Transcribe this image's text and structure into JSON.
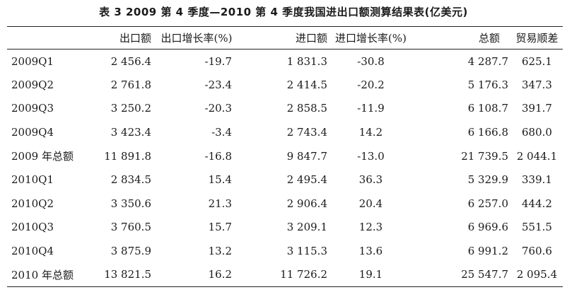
{
  "title": "表 3  2009 第 4 季度—2010 第 4 季度我国进出口额测算结果表(亿美元)",
  "headers": [
    "",
    "出口额",
    "出口增长率(%)",
    "进口额",
    "进口增长率(%)",
    "总额",
    "贸易顺差"
  ],
  "rows": [
    [
      "2009Q1",
      "2 456.4",
      "-19.7",
      "1 831.3",
      "-30.8",
      "4 287.7",
      "625.1"
    ],
    [
      "2009Q2",
      "2 761.8",
      "-23.4",
      "2 414.5",
      "-20.2",
      "5 176.3",
      "347.3"
    ],
    [
      "2009Q3",
      "3 250.2",
      "-20.3",
      "2 858.5",
      "-11.9",
      "6 108.7",
      "391.7"
    ],
    [
      "2009Q4",
      "3 423.4",
      "-3.4",
      "2 743.4",
      "14.2",
      "6 166.8",
      "680.0"
    ],
    [
      "2009 年总额",
      "11 891.8",
      "-16.8",
      "9 847.7",
      "-13.0",
      "21 739.5",
      "2 044.1"
    ],
    [
      "2010Q1",
      "2 834.5",
      "15.4",
      "2 495.4",
      "36.3",
      "5 329.9",
      "339.1"
    ],
    [
      "2010Q2",
      "3 350.6",
      "21.3",
      "2 906.4",
      "20.4",
      "6 257.0",
      "444.2"
    ],
    [
      "2010Q3",
      "3 760.5",
      "15.7",
      "3 209.1",
      "12.3",
      "6 969.6",
      "551.5"
    ],
    [
      "2010Q4",
      "3 875.9",
      "13.2",
      "3 115.3",
      "13.6",
      "6 991.2",
      "760.6"
    ],
    [
      "2010 年总额",
      "13 821.5",
      "16.2",
      "11 726.2",
      "19.1",
      "25 547.7",
      "2 095.4"
    ]
  ]
}
